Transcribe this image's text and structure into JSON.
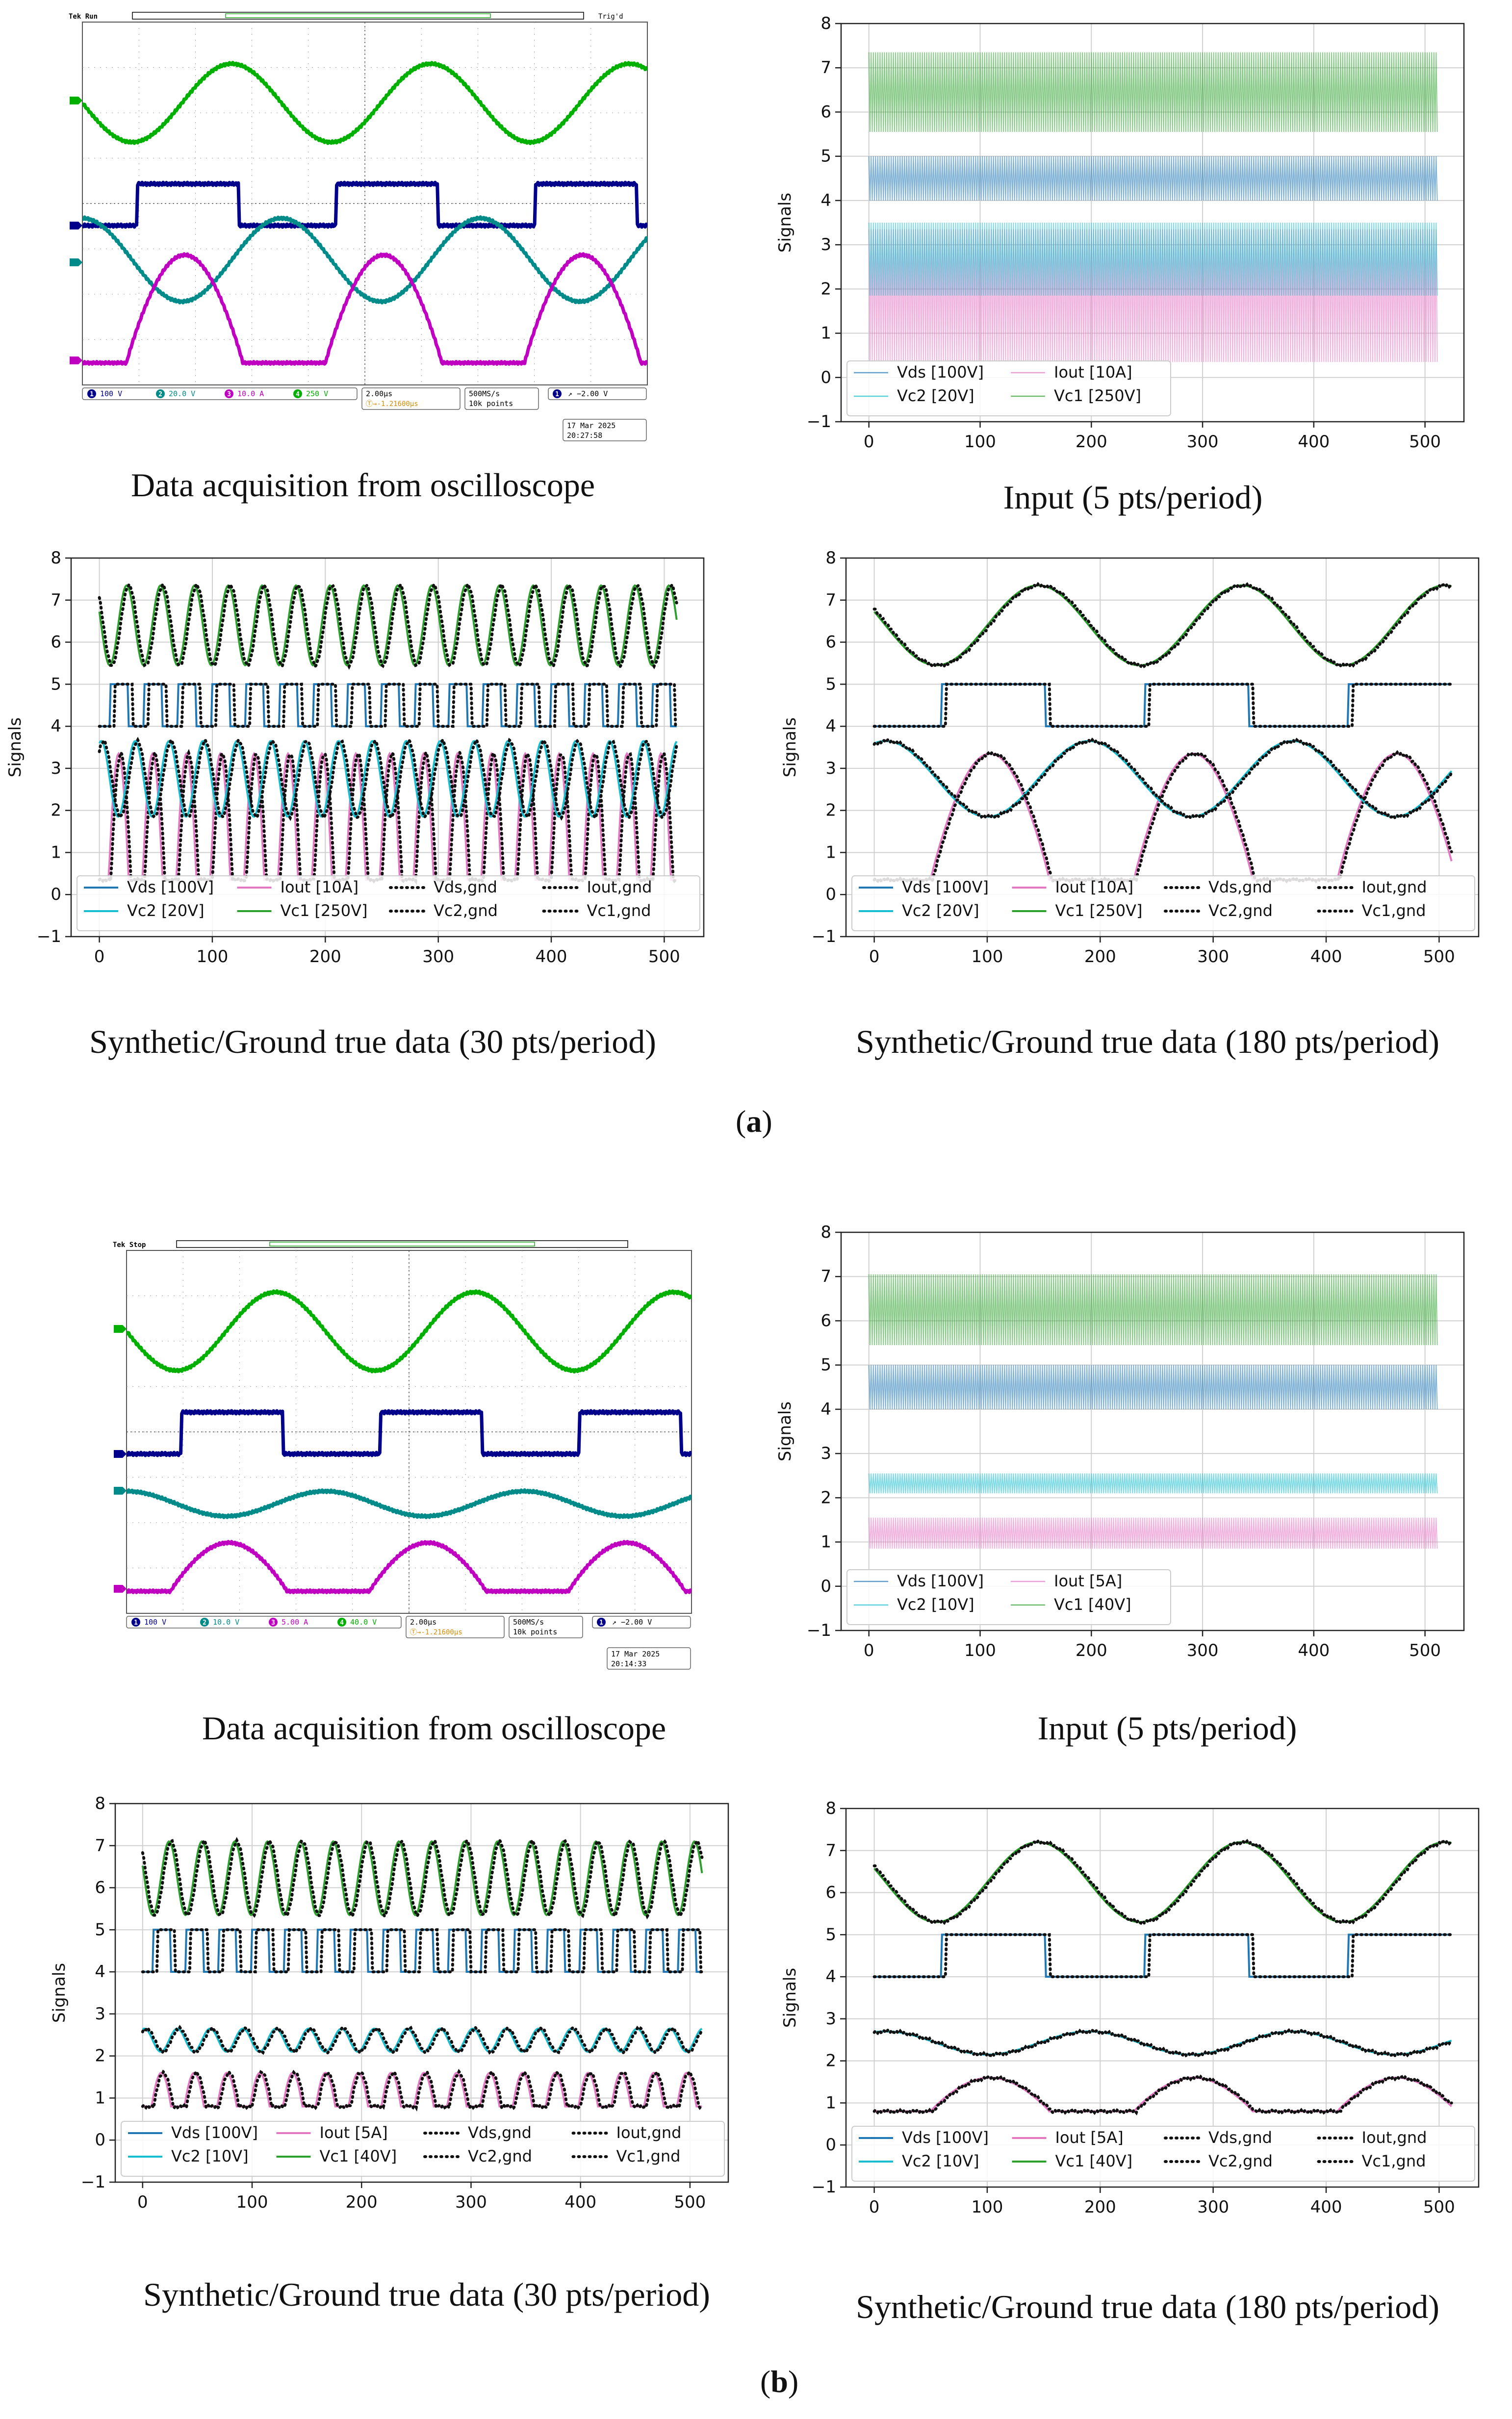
{
  "figure": {
    "label_a": "(a)",
    "label_a_letter": "a",
    "label_b": "(b)",
    "label_b_letter": "b"
  },
  "colors": {
    "Vds": "#1f77b4",
    "Vc2": "#17becf",
    "Iout": "#e377c2",
    "Vc1": "#2ca02c",
    "gnd": "#111111",
    "scope_bg": "#ffffff",
    "scope_grid": "#999999",
    "scope_ch1": "#00008b",
    "scope_ch2": "#008b8b",
    "scope_ch3": "#c000c0",
    "scope_ch4": "#00b000"
  },
  "scopes": [
    {
      "id": "a",
      "status": "Run",
      "trig": "Trig'd",
      "brand": "Tek",
      "channel_scales": [
        "100 V",
        "20.0 V",
        "10.0 A",
        "250 V"
      ],
      "channel_numbers": [
        "1",
        "2",
        "3",
        "4"
      ],
      "timebase": "2.00µs",
      "trigger_offset": "-1.21600µs",
      "sample_rate": "500MS/s",
      "record_length": "10k points",
      "trigger_channel": "1",
      "trigger_level": "−2.00 V",
      "date": "17 Mar 2025",
      "time": "20:27:58",
      "caption": "Data acquisition from oscilloscope",
      "ch2_amp": 1.0,
      "ch3_amp": 1.0
    },
    {
      "id": "b",
      "status": "Stop",
      "trig": "",
      "brand": "Tek",
      "channel_scales": [
        "100 V",
        "10.0 V",
        "5.00 A",
        "40.0 V"
      ],
      "channel_numbers": [
        "1",
        "2",
        "3",
        "4"
      ],
      "timebase": "2.00µs",
      "trigger_offset": "-1.21600µs",
      "sample_rate": "500MS/s",
      "record_length": "10k points",
      "trigger_channel": "1",
      "trigger_level": "−2.00 V",
      "date": "17 Mar 2025",
      "time": "20:14:33",
      "caption": "Data acquisition from oscilloscope",
      "ch2_amp": 0.3,
      "ch3_amp": 0.45
    }
  ],
  "chart_data": [
    {
      "id": "a-input",
      "type": "line",
      "caption": "Input (5 pts/period)",
      "ylabel": "Signals",
      "xlim": [
        -25,
        535
      ],
      "ylim": [
        -1,
        8
      ],
      "xticks": [
        "0",
        "100",
        "200",
        "300",
        "400",
        "500"
      ],
      "yticks": [
        "−1",
        "0",
        "1",
        "2",
        "3",
        "4",
        "5",
        "6",
        "7",
        "8"
      ],
      "pts_per_period": 5,
      "style": "input",
      "series": [
        {
          "name": "Vds [100V]",
          "key": "Vds",
          "low": 4.0,
          "high": 5.0
        },
        {
          "name": "Iout [10A]",
          "key": "Iout",
          "low": 0.35,
          "high": 3.35
        },
        {
          "name": "Vc2 [20V]",
          "key": "Vc2",
          "low": 1.85,
          "high": 3.5
        },
        {
          "name": "Vc1 [250V]",
          "key": "Vc1",
          "low": 5.55,
          "high": 7.35
        }
      ],
      "legend": [
        "Vds [100V]",
        "Iout [10A]",
        "Vc2 [20V]",
        "Vc1 [250V]"
      ]
    },
    {
      "id": "a-30",
      "type": "line",
      "caption": "Synthetic/Ground true data (30 pts/period)",
      "ylabel": "Signals",
      "xlim": [
        -25,
        535
      ],
      "ylim": [
        -1,
        8
      ],
      "xticks": [
        "0",
        "100",
        "200",
        "300",
        "400",
        "500"
      ],
      "yticks": [
        "−1",
        "0",
        "1",
        "2",
        "3",
        "4",
        "5",
        "6",
        "7",
        "8"
      ],
      "pts_per_period": 30,
      "style": "gnd",
      "series": [
        {
          "name": "Vds [100V]",
          "key": "Vds",
          "low": 4.0,
          "high": 5.0
        },
        {
          "name": "Iout [10A]",
          "key": "Iout",
          "low": 0.35,
          "high": 3.35
        },
        {
          "name": "Vc2 [20V]",
          "key": "Vc2",
          "low": 1.85,
          "high": 3.65
        },
        {
          "name": "Vc1 [250V]",
          "key": "Vc1",
          "low": 5.45,
          "high": 7.35
        }
      ],
      "legend": [
        "Vds [100V]",
        "Iout [10A]",
        "Vds,gnd",
        "Iout,gnd",
        "Vc2 [20V]",
        "Vc1 [250V]",
        "Vc2,gnd",
        "Vc1,gnd"
      ]
    },
    {
      "id": "a-180",
      "type": "line",
      "caption": "Synthetic/Ground true data (180 pts/period)",
      "ylabel": "Signals",
      "xlim": [
        -25,
        535
      ],
      "ylim": [
        -1,
        8
      ],
      "xticks": [
        "0",
        "100",
        "200",
        "300",
        "400",
        "500"
      ],
      "yticks": [
        "−1",
        "0",
        "1",
        "2",
        "3",
        "4",
        "5",
        "6",
        "7",
        "8"
      ],
      "pts_per_period": 180,
      "style": "gnd",
      "series": [
        {
          "name": "Vds [100V]",
          "key": "Vds",
          "low": 4.0,
          "high": 5.0
        },
        {
          "name": "Iout [10A]",
          "key": "Iout",
          "low": 0.35,
          "high": 3.35
        },
        {
          "name": "Vc2 [20V]",
          "key": "Vc2",
          "low": 1.85,
          "high": 3.65
        },
        {
          "name": "Vc1 [250V]",
          "key": "Vc1",
          "low": 5.45,
          "high": 7.35
        }
      ],
      "legend": [
        "Vds [100V]",
        "Iout [10A]",
        "Vds,gnd",
        "Iout,gnd",
        "Vc2 [20V]",
        "Vc1 [250V]",
        "Vc2,gnd",
        "Vc1,gnd"
      ]
    },
    {
      "id": "b-input",
      "type": "line",
      "caption": "Input (5 pts/period)",
      "ylabel": "Signals",
      "xlim": [
        -25,
        535
      ],
      "ylim": [
        -1,
        8
      ],
      "xticks": [
        "0",
        "100",
        "200",
        "300",
        "400",
        "500"
      ],
      "yticks": [
        "−1",
        "0",
        "1",
        "2",
        "3",
        "4",
        "5",
        "6",
        "7",
        "8"
      ],
      "pts_per_period": 5,
      "style": "input",
      "series": [
        {
          "name": "Vds [100V]",
          "key": "Vds",
          "low": 4.0,
          "high": 5.0
        },
        {
          "name": "Iout [5A]",
          "key": "Iout",
          "low": 0.85,
          "high": 1.55
        },
        {
          "name": "Vc2 [10V]",
          "key": "Vc2",
          "low": 2.1,
          "high": 2.55
        },
        {
          "name": "Vc1 [40V]",
          "key": "Vc1",
          "low": 5.45,
          "high": 7.05
        }
      ],
      "legend": [
        "Vds [100V]",
        "Iout [5A]",
        "Vc2 [10V]",
        "Vc1 [40V]"
      ]
    },
    {
      "id": "b-30",
      "type": "line",
      "caption": "Synthetic/Ground true data (30 pts/period)",
      "ylabel": "Signals",
      "xlim": [
        -25,
        535
      ],
      "ylim": [
        -1,
        8
      ],
      "xticks": [
        "0",
        "100",
        "200",
        "300",
        "400",
        "500"
      ],
      "yticks": [
        "−1",
        "0",
        "1",
        "2",
        "3",
        "4",
        "5",
        "6",
        "7",
        "8"
      ],
      "pts_per_period": 30,
      "style": "gnd",
      "series": [
        {
          "name": "Vds [100V]",
          "key": "Vds",
          "low": 4.0,
          "high": 5.0
        },
        {
          "name": "Iout [5A]",
          "key": "Iout",
          "low": 0.8,
          "high": 1.6
        },
        {
          "name": "Vc2 [10V]",
          "key": "Vc2",
          "low": 2.1,
          "high": 2.65
        },
        {
          "name": "Vc1 [40V]",
          "key": "Vc1",
          "low": 5.35,
          "high": 7.1
        }
      ],
      "legend": [
        "Vds [100V]",
        "Iout [5A]",
        "Vds,gnd",
        "Iout,gnd",
        "Vc2 [10V]",
        "Vc1 [40V]",
        "Vc2,gnd",
        "Vc1,gnd"
      ]
    },
    {
      "id": "b-180",
      "type": "line",
      "caption": "Synthetic/Ground true data (180 pts/period)",
      "ylabel": "Signals",
      "xlim": [
        -25,
        535
      ],
      "ylim": [
        -1,
        8
      ],
      "xticks": [
        "0",
        "100",
        "200",
        "300",
        "400",
        "500"
      ],
      "yticks": [
        "−1",
        "0",
        "1",
        "2",
        "3",
        "4",
        "5",
        "6",
        "7",
        "8"
      ],
      "pts_per_period": 180,
      "style": "gnd",
      "series": [
        {
          "name": "Vds [100V]",
          "key": "Vds",
          "low": 4.0,
          "high": 5.0
        },
        {
          "name": "Iout [5A]",
          "key": "Iout",
          "low": 0.8,
          "high": 1.6
        },
        {
          "name": "Vc2 [10V]",
          "key": "Vc2",
          "low": 2.15,
          "high": 2.7
        },
        {
          "name": "Vc1 [40V]",
          "key": "Vc1",
          "low": 5.3,
          "high": 7.2
        }
      ],
      "legend": [
        "Vds [100V]",
        "Iout [5A]",
        "Vds,gnd",
        "Iout,gnd",
        "Vc2 [10V]",
        "Vc1 [40V]",
        "Vc2,gnd",
        "Vc1,gnd"
      ]
    }
  ]
}
